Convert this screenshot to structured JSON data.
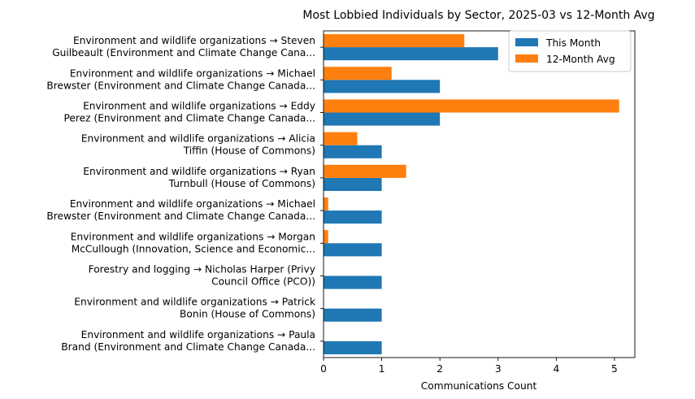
{
  "chart_data": {
    "type": "bar",
    "orientation": "horizontal",
    "title": "Most Lobbied Individuals by Sector, 2025-03 vs 12-Month Avg",
    "xlabel": "Communications Count",
    "ylabel": "",
    "xlim": [
      0,
      5.35
    ],
    "xticks": [
      "0",
      "1",
      "2",
      "3",
      "4",
      "5"
    ],
    "legend_position": "top-right",
    "categories": [
      [
        "Environment and wildlife organizations → Steven",
        "Guilbeault (Environment and Climate Change Cana..."
      ],
      [
        "Environment and wildlife organizations → Michael",
        "Brewster (Environment and Climate Change Canada..."
      ],
      [
        "Environment and wildlife organizations → Eddy",
        "Perez (Environment and Climate Change Canada..."
      ],
      [
        "Environment and wildlife organizations → Alicia",
        "Tiffin (House of Commons)"
      ],
      [
        "Environment and wildlife organizations → Ryan",
        "Turnbull (House of Commons)"
      ],
      [
        "Environment and wildlife organizations → Michael",
        "Brewster (Environment and Climate Change Canada..."
      ],
      [
        "Environment and wildlife organizations → Morgan",
        "McCullough (Innovation, Science and Economic..."
      ],
      [
        "Forestry and logging → Nicholas Harper (Privy",
        "Council Office (PCO))"
      ],
      [
        "Environment and wildlife organizations → Patrick",
        "Bonin (House of Commons)"
      ],
      [
        "Environment and wildlife organizations → Paula",
        "Brand (Environment and Climate Change Canada..."
      ]
    ],
    "series": [
      {
        "name": "This Month",
        "color": "#1f77b4",
        "values": [
          3,
          2,
          2,
          1,
          1,
          1,
          1,
          1,
          1,
          1
        ]
      },
      {
        "name": "12-Month Avg",
        "color": "#ff7f0e",
        "values": [
          2.42,
          1.17,
          5.08,
          0.58,
          1.42,
          0.08,
          0.08,
          0,
          0,
          0
        ]
      }
    ]
  }
}
